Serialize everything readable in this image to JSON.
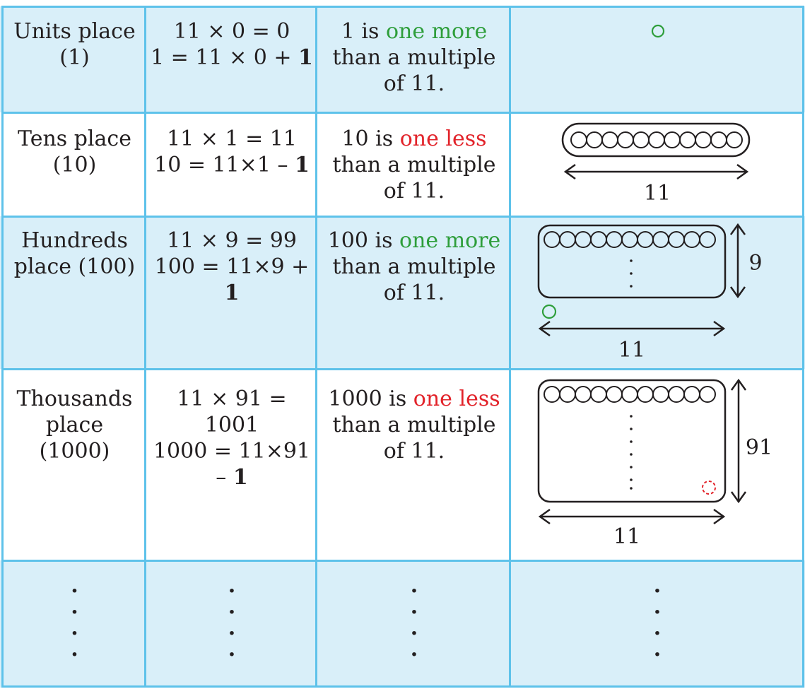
{
  "rows": [
    {
      "place": [
        "Units place",
        "(1)"
      ],
      "calc": {
        "line1": "11 × 0 = 0",
        "line2_pre": "1 = 11 × 0 + ",
        "line2_bold": "1"
      },
      "stmt": {
        "pre": "1 is ",
        "highlight": "one more",
        "kind": "more",
        "post_lines": [
          "than a multiple",
          "of 11."
        ]
      }
    },
    {
      "place": [
        "Tens place",
        "(10)"
      ],
      "calc": {
        "line1": "11 × 1 = 11",
        "line2_pre": "10 = 11×1 – ",
        "line2_bold": "1"
      },
      "stmt": {
        "pre": "10 is ",
        "highlight": "one less",
        "kind": "less",
        "post_lines": [
          "than a multiple",
          "of 11."
        ]
      },
      "fig_label_width": "11"
    },
    {
      "place": [
        "Hundreds",
        "place (100)"
      ],
      "calc": {
        "line1": "11 × 9 = 99",
        "line2_pre": "100 = 11×9 + ",
        "line2_bold": "1"
      },
      "stmt": {
        "pre": "100 is ",
        "highlight": "one more",
        "kind": "more",
        "post_lines": [
          "than a multiple",
          "of 11."
        ]
      },
      "fig_label_width": "11",
      "fig_label_height": "9"
    },
    {
      "place": [
        "Thousands",
        "place",
        "(1000)"
      ],
      "calc": {
        "line1": "11 × 91 = 1001",
        "line2_pre": "1000 = 11×91",
        "line3_pre": "– ",
        "line3_bold": "1"
      },
      "stmt": {
        "pre": "1000 is ",
        "highlight": "one less",
        "kind": "less",
        "post_lines": [
          "than a multiple",
          "of 11."
        ]
      },
      "fig_label_width": "11",
      "fig_label_height": "91"
    }
  ],
  "colors": {
    "grid": "#5ec2ea",
    "row_blue": "#d9eff9",
    "more": "#2e9e3b",
    "less": "#e2232a",
    "text": "#231f20"
  }
}
